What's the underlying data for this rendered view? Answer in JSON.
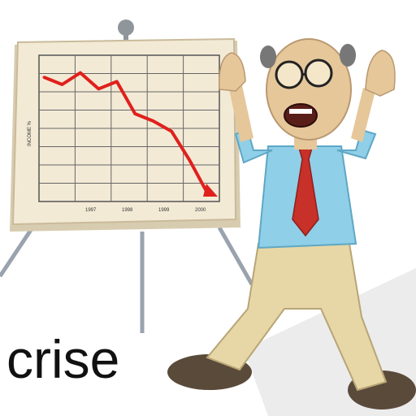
{
  "caption": "crise",
  "chart_data": {
    "type": "line",
    "ylabel": "INCOME %",
    "x_tick_labels": [
      "1997",
      "1998",
      "1999",
      "2000"
    ],
    "series": [
      {
        "values": [
          85,
          80,
          88,
          77,
          82,
          60,
          55,
          48,
          28,
          5
        ]
      }
    ],
    "ylim": [
      0,
      100
    ],
    "grid": true
  },
  "colors": {
    "board": "#f3ead6",
    "line": "#e0201c",
    "shirt": "#8fcfe8",
    "pants": "#e8d7a6",
    "tie": "#c8302a",
    "skin": "#e6c79a",
    "shoes": "#5a4a3a"
  }
}
